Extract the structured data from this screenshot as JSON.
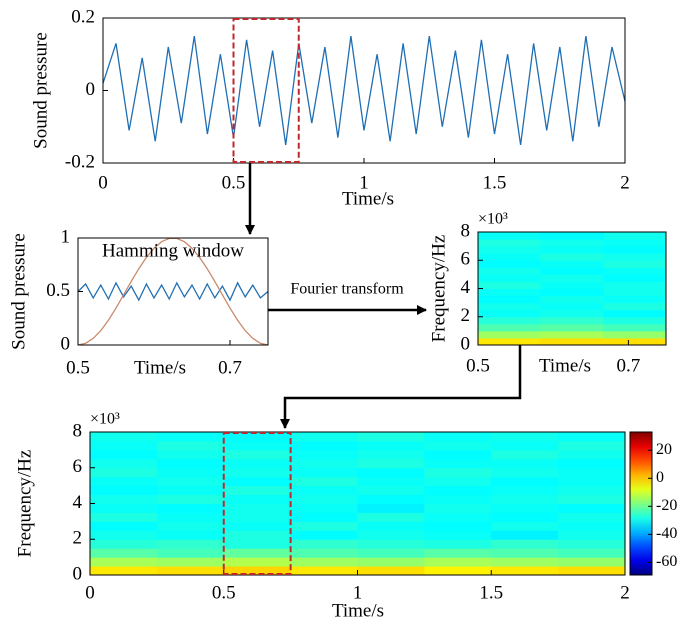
{
  "chart_data": [
    {
      "type": "line",
      "ylabel": "Sound pressure",
      "xlabel": "Time/s",
      "xlim": [
        0,
        2
      ],
      "xticks": [
        0,
        0.5,
        1,
        1.5,
        2
      ],
      "ylim": [
        -0.2,
        0.2
      ],
      "yticks": [
        -0.2,
        0,
        0.2
      ],
      "highlight_x": [
        0.5,
        0.75
      ],
      "x": [
        0,
        0.05,
        0.1,
        0.15,
        0.2,
        0.25,
        0.3,
        0.35,
        0.4,
        0.45,
        0.5,
        0.55,
        0.6,
        0.65,
        0.7,
        0.75,
        0.8,
        0.85,
        0.9,
        0.95,
        1,
        1.05,
        1.1,
        1.15,
        1.2,
        1.25,
        1.3,
        1.35,
        1.4,
        1.45,
        1.5,
        1.55,
        1.6,
        1.65,
        1.7,
        1.75,
        1.8,
        1.85,
        1.9,
        1.95,
        2
      ],
      "series": [
        {
          "color": "#1f6fb4",
          "values": [
            0.02,
            0.13,
            -0.11,
            0.09,
            -0.14,
            0.12,
            -0.09,
            0.15,
            -0.12,
            0.1,
            -0.13,
            0.14,
            -0.1,
            0.11,
            -0.15,
            0.13,
            -0.09,
            0.12,
            -0.13,
            0.15,
            -0.11,
            0.1,
            -0.14,
            0.13,
            -0.12,
            0.15,
            -0.1,
            0.11,
            -0.13,
            0.14,
            -0.12,
            0.1,
            -0.15,
            0.13,
            -0.11,
            0.12,
            -0.14,
            0.15,
            -0.1,
            0.12,
            -0.03
          ]
        }
      ]
    },
    {
      "type": "line",
      "ylabel": "Sound pressure",
      "xlabel": "Time/s",
      "annotation": "Hamming window",
      "arrow_label": "Fourier transform",
      "xlim": [
        0.5,
        0.75
      ],
      "xticks": [
        0.5,
        0.7
      ],
      "ylim": [
        0,
        1
      ],
      "yticks": [
        0,
        0.5,
        1
      ],
      "x": [
        0.5,
        0.51,
        0.52,
        0.53,
        0.54,
        0.55,
        0.56,
        0.57,
        0.58,
        0.59,
        0.6,
        0.61,
        0.62,
        0.63,
        0.64,
        0.65,
        0.66,
        0.67,
        0.68,
        0.69,
        0.7,
        0.71,
        0.72,
        0.73,
        0.74,
        0.75
      ],
      "series": [
        {
          "color": "#1f6fb4",
          "values": [
            0.5,
            0.57,
            0.44,
            0.56,
            0.43,
            0.58,
            0.45,
            0.55,
            0.42,
            0.57,
            0.44,
            0.56,
            0.43,
            0.58,
            0.45,
            0.56,
            0.43,
            0.57,
            0.44,
            0.55,
            0.42,
            0.58,
            0.45,
            0.56,
            0.44,
            0.5
          ]
        },
        {
          "color": "#c98a6c",
          "values": [
            0,
            0.016,
            0.062,
            0.135,
            0.232,
            0.345,
            0.469,
            0.594,
            0.713,
            0.819,
            0.905,
            0.965,
            0.996,
            0.996,
            0.965,
            0.905,
            0.819,
            0.713,
            0.594,
            0.469,
            0.345,
            0.232,
            0.135,
            0.062,
            0.016,
            0
          ]
        }
      ]
    },
    {
      "type": "heatmap",
      "ylabel": "Frequency/Hz",
      "xlabel": "Time/s",
      "multiplier": "×10³",
      "xlim": [
        0.5,
        0.75
      ],
      "xticks": [
        0.5,
        0.7
      ],
      "ylim": [
        0,
        8
      ],
      "yticks": [
        0,
        2,
        4,
        6,
        8
      ],
      "clim": [
        -69,
        33
      ],
      "time_edges": [
        0.5,
        0.583,
        0.667,
        0.75
      ],
      "freq_edges": [
        0,
        0.5,
        1,
        1.5,
        2,
        2.5,
        3,
        3.5,
        4,
        4.5,
        5,
        5.5,
        6,
        6.5,
        7,
        7.5,
        8
      ],
      "z": [
        [
          -3,
          -2,
          -2
        ],
        [
          -15,
          -14,
          -16
        ],
        [
          -23,
          -22,
          -24
        ],
        [
          -27,
          -26,
          -28
        ],
        [
          -30,
          -29,
          -31
        ],
        [
          -29,
          -30,
          -28
        ],
        [
          -31,
          -29,
          -30
        ],
        [
          -30,
          -31,
          -29
        ],
        [
          -28,
          -30,
          -29
        ],
        [
          -30,
          -29,
          -31
        ],
        [
          -29,
          -31,
          -30
        ],
        [
          -31,
          -30,
          -28
        ],
        [
          -30,
          -28,
          -29
        ],
        [
          -29,
          -30,
          -31
        ],
        [
          -28,
          -29,
          -30
        ],
        [
          -30,
          -31,
          -29
        ]
      ]
    },
    {
      "type": "heatmap",
      "ylabel": "Frequency/Hz",
      "xlabel": "Time/s",
      "multiplier": "×10³",
      "xlim": [
        0,
        2
      ],
      "xticks": [
        0,
        0.5,
        1,
        1.5,
        2
      ],
      "ylim": [
        0,
        8
      ],
      "yticks": [
        0,
        2,
        4,
        6,
        8
      ],
      "clim": [
        -69,
        33
      ],
      "cticks": [
        20,
        0,
        -20,
        -40,
        -60
      ],
      "highlight_x": [
        0.5,
        0.75
      ],
      "time_edges": [
        0,
        0.25,
        0.5,
        0.75,
        1,
        1.25,
        1.5,
        1.75,
        2
      ],
      "freq_edges": [
        0,
        0.5,
        1,
        1.5,
        2,
        2.5,
        3,
        3.5,
        4,
        4.5,
        5,
        5.5,
        6,
        6.5,
        7,
        7.5,
        8
      ],
      "z": [
        [
          -3,
          -2,
          -1,
          -3,
          -2,
          -4,
          -3,
          -2
        ],
        [
          -14,
          -15,
          -13,
          -15,
          -16,
          -14,
          -15,
          -16
        ],
        [
          -22,
          -24,
          -21,
          -23,
          -24,
          -22,
          -23,
          -24
        ],
        [
          -27,
          -26,
          -28,
          -26,
          -27,
          -28,
          -26,
          -27
        ],
        [
          -29,
          -30,
          -28,
          -31,
          -29,
          -30,
          -32,
          -29
        ],
        [
          -31,
          -29,
          -30,
          -28,
          -30,
          -31,
          -29,
          -30
        ],
        [
          -28,
          -30,
          -29,
          -31,
          -28,
          -30,
          -31,
          -29
        ],
        [
          -30,
          -31,
          -29,
          -30,
          -32,
          -29,
          -30,
          -31
        ],
        [
          -29,
          -28,
          -30,
          -29,
          -31,
          -30,
          -29,
          -28
        ],
        [
          -31,
          -30,
          -28,
          -30,
          -29,
          -31,
          -30,
          -29
        ],
        [
          -30,
          -29,
          -31,
          -28,
          -30,
          -29,
          -31,
          -30
        ],
        [
          -28,
          -30,
          -29,
          -30,
          -31,
          -28,
          -29,
          -30
        ],
        [
          -29,
          -31,
          -30,
          -29,
          -28,
          -30,
          -30,
          -31
        ],
        [
          -31,
          -29,
          -28,
          -30,
          -29,
          -31,
          -28,
          -29
        ],
        [
          -30,
          -28,
          -30,
          -31,
          -30,
          -29,
          -30,
          -28
        ],
        [
          -29,
          -30,
          -31,
          -29,
          -28,
          -30,
          -29,
          -30
        ]
      ]
    }
  ]
}
